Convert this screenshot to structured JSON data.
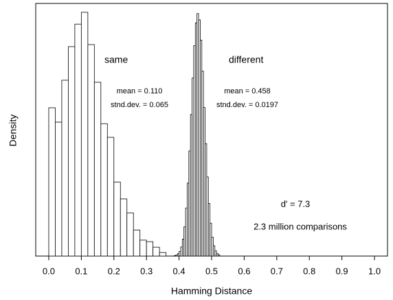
{
  "chart_data": {
    "type": "histogram",
    "xlabel": "Hamming Distance",
    "ylabel": "Density",
    "xlim": [
      -0.04,
      1.04
    ],
    "ylim": [
      0,
      100
    ],
    "xticks": [
      {
        "value": 0,
        "label": "0.0"
      },
      0.1,
      0.2,
      0.3,
      0.4,
      0.5,
      0.6,
      0.7,
      0.8,
      0.9,
      {
        "value": 1,
        "label": "1.0"
      }
    ],
    "series": [
      {
        "name": "same",
        "color": "#ffffff",
        "bins": [
          0,
          0.02,
          0.04,
          0.06,
          0.08,
          0.1,
          0.12,
          0.14,
          0.16,
          0.18,
          0.2,
          0.22,
          0.24,
          0.26,
          0.28,
          0.3,
          0.32,
          0.34,
          0.36
        ],
        "values": [
          58.7,
          53,
          69.6,
          82.9,
          91.8,
          96.5,
          83.7,
          68.8,
          52.4,
          47,
          29.3,
          22.6,
          17.1,
          10.3,
          6.3,
          5.7,
          3.5,
          1.4
        ]
      },
      {
        "name": "different",
        "color": "#ffffff",
        "bins": [
          0.385,
          0.39,
          0.395,
          0.4,
          0.405,
          0.41,
          0.415,
          0.42,
          0.425,
          0.43,
          0.435,
          0.44,
          0.445,
          0.45,
          0.455,
          0.46,
          0.465,
          0.47,
          0.475,
          0.48,
          0.485,
          0.49,
          0.495,
          0.5,
          0.505,
          0.51,
          0.515,
          0.52,
          0.525
        ],
        "values": [
          0.2,
          0.4,
          0.9,
          1.8,
          3.6,
          6.7,
          11.6,
          19,
          28.9,
          41.6,
          56,
          70.5,
          83.3,
          92.3,
          96,
          93.5,
          85.5,
          73.2,
          58.8,
          44.5,
          31.3,
          20.8,
          13,
          7.5,
          4.1,
          2.1,
          1,
          0.5
        ]
      }
    ],
    "annotations": [
      "mean = 0.110",
      "stnd.dev. = 0.065",
      "mean = 0.458",
      "stnd.dev. = 0.0197",
      "d' = 7.3",
      "2.3 million comparisons"
    ]
  }
}
